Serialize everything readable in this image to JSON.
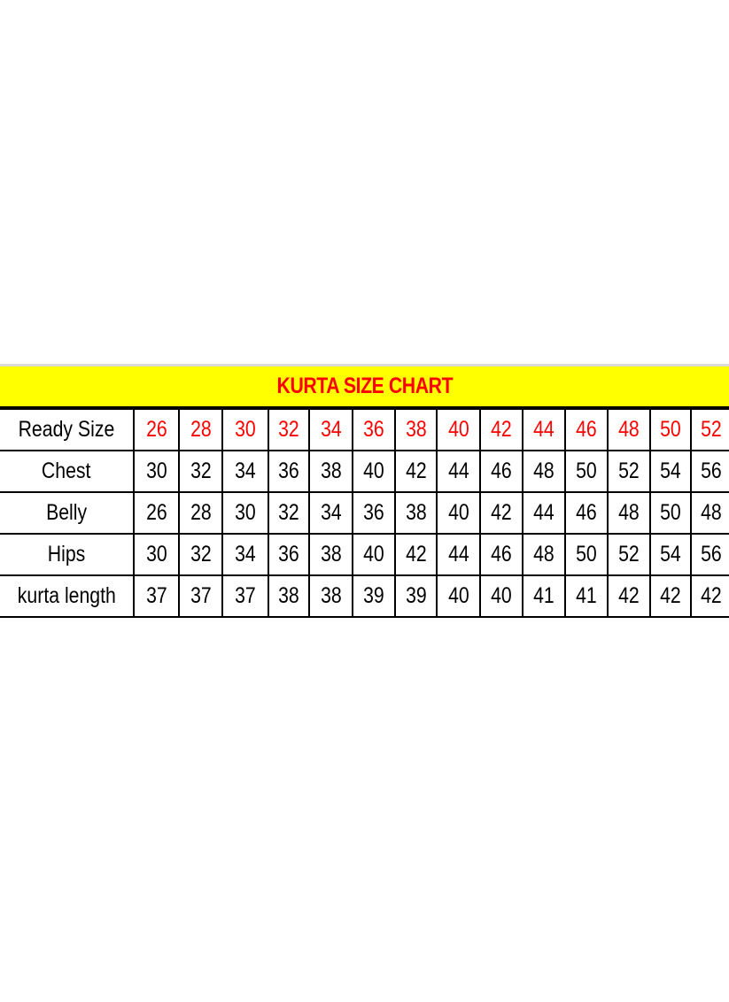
{
  "title": "KURTA SIZE CHART",
  "colors": {
    "title_band": "#ffff00",
    "title_text": "#ff0000",
    "ready_size_values": "#ff0000"
  },
  "table": {
    "rows": [
      {
        "label": "Ready Size",
        "values": [
          "26",
          "28",
          "30",
          "32",
          "34",
          "36",
          "38",
          "40",
          "42",
          "44",
          "46",
          "48",
          "50",
          "52"
        ]
      },
      {
        "label": "Chest",
        "values": [
          "30",
          "32",
          "34",
          "36",
          "38",
          "40",
          "42",
          "44",
          "46",
          "48",
          "50",
          "52",
          "54",
          "56"
        ]
      },
      {
        "label": "Belly",
        "values": [
          "26",
          "28",
          "30",
          "32",
          "34",
          "36",
          "38",
          "40",
          "42",
          "44",
          "46",
          "48",
          "50",
          "48"
        ]
      },
      {
        "label": "Hips",
        "values": [
          "30",
          "32",
          "34",
          "36",
          "38",
          "40",
          "42",
          "44",
          "46",
          "48",
          "50",
          "52",
          "54",
          "56"
        ]
      },
      {
        "label": "kurta length",
        "values": [
          "37",
          "37",
          "37",
          "38",
          "38",
          "39",
          "39",
          "40",
          "40",
          "41",
          "41",
          "42",
          "42",
          "42"
        ]
      }
    ]
  }
}
